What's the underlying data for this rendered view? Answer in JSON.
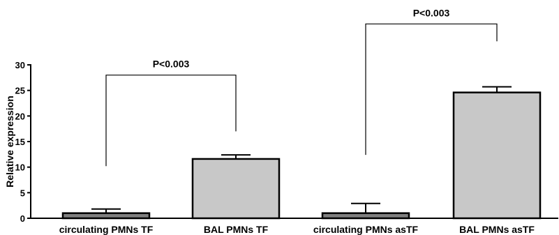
{
  "chart_data": {
    "type": "bar",
    "title": "",
    "xlabel": "",
    "ylabel": "Relative expression",
    "ylim": [
      0,
      30
    ],
    "yticks": [
      0,
      5,
      10,
      15,
      20,
      25,
      30
    ],
    "grid": false,
    "categories": [
      "circulating PMNs TF",
      "BAL PMNs TF",
      "circulating PMNs asTF",
      "BAL PMNs asTF"
    ],
    "values": [
      1.0,
      11.6,
      1.0,
      24.6
    ],
    "error_upper": [
      1.8,
      12.4,
      2.9,
      25.7
    ],
    "bar_colors": [
      "#808080",
      "#c8c8c8",
      "#808080",
      "#c8c8c8"
    ],
    "significance": [
      {
        "from": 0,
        "to": 1,
        "label": "P<0.003",
        "y_from": 10.2,
        "y_to": 17.0,
        "y_top": 28.0
      },
      {
        "from": 2,
        "to": 3,
        "label": "P<0.003",
        "y_from": 12.4,
        "y_to": 34.6,
        "y_top": 38.0
      }
    ]
  }
}
